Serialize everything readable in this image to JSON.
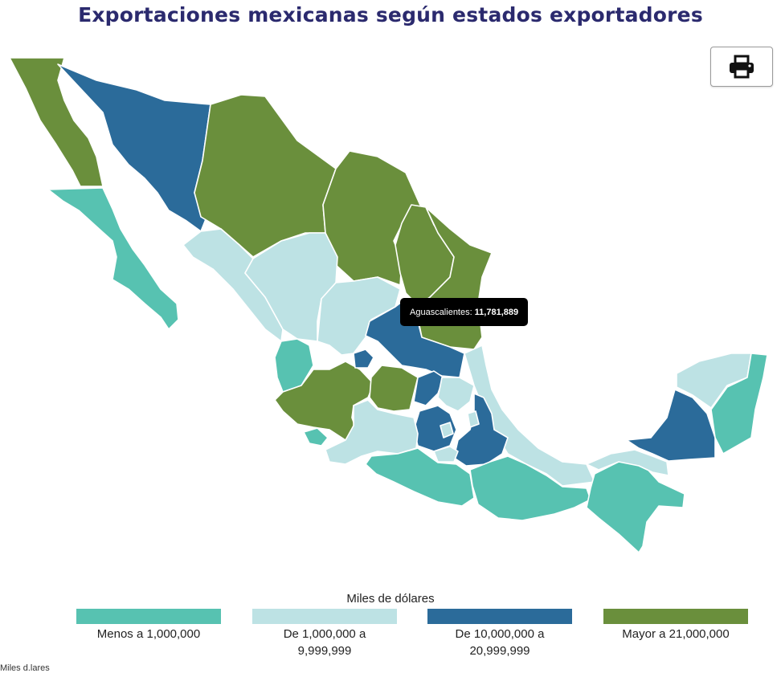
{
  "title": "Exportaciones mexicanas según estados exportadores",
  "print_icon": "print-icon",
  "tooltip": {
    "label": "Aguascalientes:",
    "value": "11,781,889"
  },
  "legend": {
    "title": "Miles de dólares",
    "items": [
      {
        "label_line1": "Menos a 1,000,000",
        "label_line2": "",
        "color": "#57c2b1"
      },
      {
        "label_line1": "De 1,000,000 a",
        "label_line2": "9,999,999",
        "color": "#bde2e4"
      },
      {
        "label_line1": "De 10,000,000 a",
        "label_line2": "20,999,999",
        "color": "#2b6b9a"
      },
      {
        "label_line1": "Mayor a 21,000,000",
        "label_line2": "",
        "color": "#6a8f3c"
      }
    ]
  },
  "footnote": "Miles d.lares"
}
